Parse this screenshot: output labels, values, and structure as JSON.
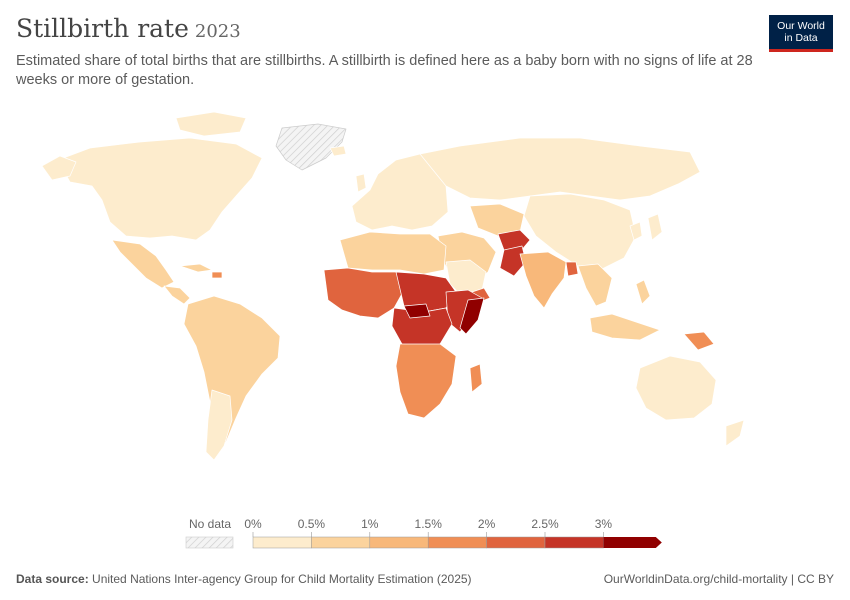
{
  "header": {
    "title": "Stillbirth rate",
    "year": "2023",
    "subtitle": "Estimated share of total births that are stillbirths. A stillbirth is defined here as a baby born with no signs of life at 28 weeks or more of gestation."
  },
  "logo": {
    "line1": "Our World",
    "line2": "in Data"
  },
  "legend": {
    "no_data_label": "No data",
    "ticks": [
      "0%",
      "0.5%",
      "1%",
      "1.5%",
      "2%",
      "2.5%",
      "3%"
    ],
    "colors": [
      "#fdeccd",
      "#fbd39d",
      "#f8b87a",
      "#f08e55",
      "#e0643e",
      "#c53427",
      "#900000"
    ],
    "no_data_color": "#e5e5e5"
  },
  "footer": {
    "source_label": "Data source:",
    "source_text": "United Nations Inter-agency Group for Child Mortality Estimation (2025)",
    "url": "OurWorldinData.org/child-mortality | CC BY"
  }
}
